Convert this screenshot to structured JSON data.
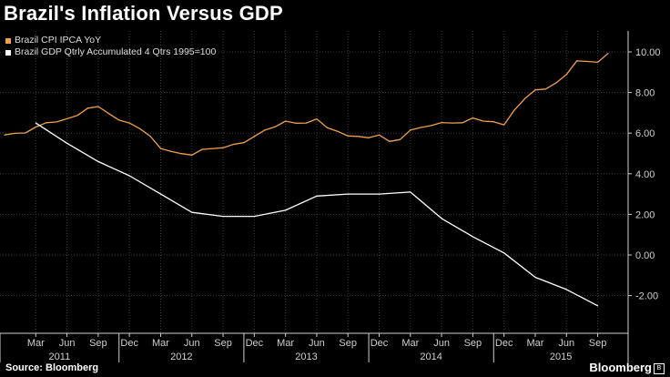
{
  "title": "Brazil's Inflation Versus GDP",
  "source": "Source: Bloomberg",
  "brand": "Bloomberg",
  "brand_mark": "B",
  "colors": {
    "cpi": "#f0a04b",
    "gdp": "#ffffff",
    "grid": "#3a3a3a",
    "axis": "#cfcfcf"
  },
  "chart_data": {
    "type": "line",
    "title": "Brazil's Inflation Versus GDP",
    "xlabel": "",
    "ylabel": "",
    "ylim": [
      -3,
      11
    ],
    "yticks": [
      -2,
      0,
      2,
      4,
      6,
      8,
      10
    ],
    "ytick_labels": [
      "-2.00",
      "0.00",
      "2.00",
      "4.00",
      "6.00",
      "8.00",
      "10.00"
    ],
    "x_month_labels": [
      "Mar",
      "Jun",
      "Sep",
      "Dec",
      "Mar",
      "Jun",
      "Sep",
      "Dec",
      "Mar",
      "Jun",
      "Sep",
      "Dec",
      "Mar",
      "Jun",
      "Sep",
      "Dec",
      "Mar",
      "Jun",
      "Sep"
    ],
    "x_year_labels": [
      "2011",
      "2012",
      "2013",
      "2014",
      "2015"
    ],
    "legend_position": "top-left",
    "grid": true,
    "series": [
      {
        "name": "Brazil CPI IPCA YoY",
        "x": [
          "2010-12",
          "2011-01",
          "2011-02",
          "2011-03",
          "2011-04",
          "2011-05",
          "2011-06",
          "2011-07",
          "2011-08",
          "2011-09",
          "2011-10",
          "2011-11",
          "2011-12",
          "2012-01",
          "2012-02",
          "2012-03",
          "2012-04",
          "2012-05",
          "2012-06",
          "2012-07",
          "2012-08",
          "2012-09",
          "2012-10",
          "2012-11",
          "2012-12",
          "2013-01",
          "2013-02",
          "2013-03",
          "2013-04",
          "2013-05",
          "2013-06",
          "2013-07",
          "2013-08",
          "2013-09",
          "2013-10",
          "2013-11",
          "2013-12",
          "2014-01",
          "2014-02",
          "2014-03",
          "2014-04",
          "2014-05",
          "2014-06",
          "2014-07",
          "2014-08",
          "2014-09",
          "2014-10",
          "2014-11",
          "2014-12",
          "2015-01",
          "2015-02",
          "2015-03",
          "2015-04",
          "2015-05",
          "2015-06",
          "2015-07",
          "2015-08",
          "2015-09",
          "2015-10"
        ],
        "values": [
          5.91,
          5.99,
          6.01,
          6.3,
          6.51,
          6.55,
          6.71,
          6.87,
          7.23,
          7.31,
          6.97,
          6.64,
          6.5,
          6.22,
          5.85,
          5.24,
          5.1,
          4.99,
          4.92,
          5.2,
          5.24,
          5.28,
          5.45,
          5.53,
          5.84,
          6.15,
          6.31,
          6.59,
          6.49,
          6.5,
          6.7,
          6.27,
          6.09,
          5.86,
          5.84,
          5.77,
          5.91,
          5.59,
          5.68,
          6.15,
          6.28,
          6.37,
          6.52,
          6.5,
          6.51,
          6.75,
          6.59,
          6.56,
          6.41,
          7.14,
          7.7,
          8.13,
          8.17,
          8.47,
          8.89,
          9.56,
          9.53,
          9.49,
          9.93
        ]
      },
      {
        "name": "Brazil GDP Qtrly Accumulated 4 Qtrs 1995=100",
        "x": [
          "2011-03",
          "2011-06",
          "2011-09",
          "2011-12",
          "2012-03",
          "2012-06",
          "2012-09",
          "2012-12",
          "2013-03",
          "2013-06",
          "2013-09",
          "2013-12",
          "2014-03",
          "2014-06",
          "2014-09",
          "2014-12",
          "2015-03",
          "2015-06",
          "2015-09"
        ],
        "values": [
          6.5,
          5.5,
          4.6,
          3.9,
          3.0,
          2.1,
          1.9,
          1.9,
          2.2,
          2.9,
          3.0,
          3.0,
          3.1,
          1.8,
          0.9,
          0.1,
          -1.1,
          -1.7,
          -2.5
        ]
      }
    ]
  }
}
